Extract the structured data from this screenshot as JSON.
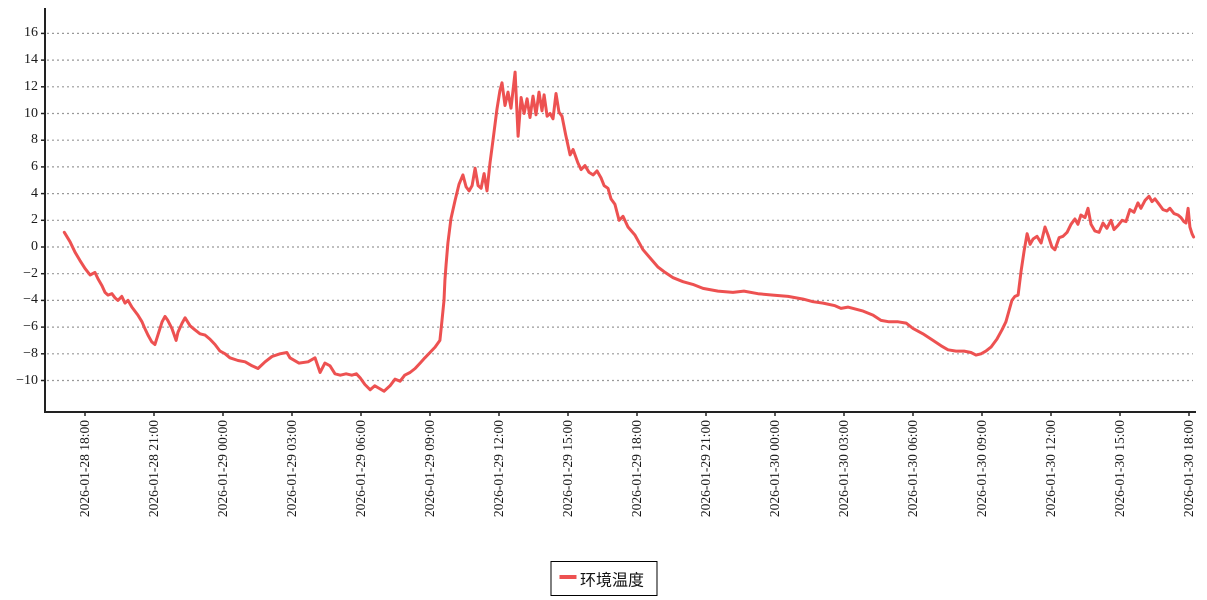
{
  "chart_data": {
    "type": "line",
    "title": "",
    "legend": {
      "items": [
        {
          "label": "环境温度",
          "color": "#ed5151"
        }
      ]
    },
    "x_axis": {
      "unit": "hours offset from 2026-01-28 18:00",
      "tick_hours": [
        0,
        3,
        6,
        9,
        12,
        15,
        18,
        21,
        24,
        27,
        30,
        33,
        36,
        39,
        42,
        45,
        48
      ],
      "tick_labels": [
        "2026-01-28 18:00",
        "2026-01-28 21:00",
        "2026-01-29 00:00",
        "2026-01-29 03:00",
        "2026-01-29 06:00",
        "2026-01-29 09:00",
        "2026-01-29 12:00",
        "2026-01-29 15:00",
        "2026-01-29 18:00",
        "2026-01-29 21:00",
        "2026-01-30 00:00",
        "2026-01-30 03:00",
        "2026-01-30 06:00",
        "2026-01-30 09:00",
        "2026-01-30 12:00",
        "2026-01-30 15:00",
        "2026-01-30 18:00"
      ],
      "range_hours": [
        -1.74,
        48.26
      ],
      "grid_vertical": false
    },
    "y_axis": {
      "ticks": [
        16,
        14,
        12,
        10,
        8,
        6,
        4,
        2,
        0,
        -2,
        -4,
        -6,
        -8,
        -10
      ],
      "tick_labels": [
        "16",
        "14",
        "12",
        "10",
        "8",
        "6",
        "4",
        "2",
        "0",
        "−2",
        "−4",
        "−6",
        "−8",
        "−10"
      ],
      "range": [
        -12.4,
        17.4
      ],
      "grid_horizontal_dashed": true
    },
    "series": [
      {
        "name": "环境温度",
        "color": "#ed5151",
        "points": [
          [
            -0.9,
            1.1
          ],
          [
            -0.65,
            0.4
          ],
          [
            -0.43,
            -0.4
          ],
          [
            -0.22,
            -1.0
          ],
          [
            0,
            -1.6
          ],
          [
            0.22,
            -2.1
          ],
          [
            0.43,
            -1.9
          ],
          [
            0.57,
            -2.4
          ],
          [
            0.74,
            -2.9
          ],
          [
            0.87,
            -3.4
          ],
          [
            1.0,
            -3.6
          ],
          [
            1.17,
            -3.5
          ],
          [
            1.3,
            -3.8
          ],
          [
            1.43,
            -4.0
          ],
          [
            1.6,
            -3.7
          ],
          [
            1.74,
            -4.2
          ],
          [
            1.87,
            -4.0
          ],
          [
            2.04,
            -4.5
          ],
          [
            2.17,
            -4.8
          ],
          [
            2.3,
            -5.1
          ],
          [
            2.48,
            -5.6
          ],
          [
            2.6,
            -6.1
          ],
          [
            2.74,
            -6.6
          ],
          [
            2.9,
            -7.1
          ],
          [
            3.04,
            -7.3
          ],
          [
            3.17,
            -6.6
          ],
          [
            3.35,
            -5.6
          ],
          [
            3.48,
            -5.2
          ],
          [
            3.6,
            -5.5
          ],
          [
            3.78,
            -6.1
          ],
          [
            3.96,
            -7.0
          ],
          [
            4.04,
            -6.4
          ],
          [
            4.22,
            -5.7
          ],
          [
            4.35,
            -5.3
          ],
          [
            4.57,
            -5.9
          ],
          [
            4.78,
            -6.2
          ],
          [
            5.0,
            -6.5
          ],
          [
            5.22,
            -6.6
          ],
          [
            5.43,
            -6.9
          ],
          [
            5.65,
            -7.3
          ],
          [
            5.87,
            -7.8
          ],
          [
            6.09,
            -8.0
          ],
          [
            6.3,
            -8.3
          ],
          [
            6.65,
            -8.5
          ],
          [
            6.96,
            -8.6
          ],
          [
            7.26,
            -8.9
          ],
          [
            7.52,
            -9.1
          ],
          [
            7.83,
            -8.6
          ],
          [
            8.13,
            -8.2
          ],
          [
            8.48,
            -8.0
          ],
          [
            8.78,
            -7.9
          ],
          [
            8.91,
            -8.3
          ],
          [
            9.3,
            -8.7
          ],
          [
            9.7,
            -8.6
          ],
          [
            10.0,
            -8.3
          ],
          [
            10.22,
            -9.4
          ],
          [
            10.43,
            -8.7
          ],
          [
            10.65,
            -8.9
          ],
          [
            10.87,
            -9.5
          ],
          [
            11.1,
            -9.6
          ],
          [
            11.35,
            -9.5
          ],
          [
            11.6,
            -9.6
          ],
          [
            11.8,
            -9.5
          ],
          [
            11.96,
            -9.8
          ],
          [
            12.17,
            -10.3
          ],
          [
            12.4,
            -10.7
          ],
          [
            12.6,
            -10.4
          ],
          [
            12.8,
            -10.6
          ],
          [
            13.0,
            -10.8
          ],
          [
            13.26,
            -10.4
          ],
          [
            13.48,
            -9.9
          ],
          [
            13.7,
            -10.05
          ],
          [
            13.9,
            -9.6
          ],
          [
            14.13,
            -9.4
          ],
          [
            14.35,
            -9.1
          ],
          [
            14.57,
            -8.7
          ],
          [
            14.78,
            -8.3
          ],
          [
            15.0,
            -7.9
          ],
          [
            15.22,
            -7.5
          ],
          [
            15.43,
            -7.0
          ],
          [
            15.52,
            -5.5
          ],
          [
            15.61,
            -4.0
          ],
          [
            15.65,
            -2.5
          ],
          [
            15.7,
            -1.3
          ],
          [
            15.78,
            0.3
          ],
          [
            15.91,
            2.1
          ],
          [
            16.09,
            3.5
          ],
          [
            16.26,
            4.7
          ],
          [
            16.43,
            5.4
          ],
          [
            16.57,
            4.5
          ],
          [
            16.7,
            4.2
          ],
          [
            16.83,
            4.6
          ],
          [
            16.96,
            5.9
          ],
          [
            17.09,
            4.6
          ],
          [
            17.22,
            4.4
          ],
          [
            17.35,
            5.5
          ],
          [
            17.48,
            4.2
          ],
          [
            17.61,
            6.3
          ],
          [
            17.74,
            8.0
          ],
          [
            17.91,
            10.3
          ],
          [
            18.04,
            11.7
          ],
          [
            18.13,
            12.3
          ],
          [
            18.26,
            10.6
          ],
          [
            18.39,
            11.6
          ],
          [
            18.52,
            10.4
          ],
          [
            18.7,
            13.1
          ],
          [
            18.83,
            8.3
          ],
          [
            18.96,
            11.2
          ],
          [
            19.09,
            10.0
          ],
          [
            19.22,
            11.1
          ],
          [
            19.35,
            9.7
          ],
          [
            19.48,
            11.3
          ],
          [
            19.61,
            9.9
          ],
          [
            19.74,
            11.6
          ],
          [
            19.87,
            10.2
          ],
          [
            19.96,
            11.4
          ],
          [
            20.09,
            9.8
          ],
          [
            20.22,
            10.0
          ],
          [
            20.35,
            9.6
          ],
          [
            20.48,
            11.5
          ],
          [
            20.61,
            10.1
          ],
          [
            20.74,
            9.8
          ],
          [
            20.9,
            8.4
          ],
          [
            21.09,
            6.9
          ],
          [
            21.22,
            7.3
          ],
          [
            21.43,
            6.3
          ],
          [
            21.57,
            5.8
          ],
          [
            21.74,
            6.1
          ],
          [
            21.91,
            5.6
          ],
          [
            22.09,
            5.4
          ],
          [
            22.26,
            5.7
          ],
          [
            22.43,
            5.2
          ],
          [
            22.57,
            4.6
          ],
          [
            22.74,
            4.4
          ],
          [
            22.87,
            3.6
          ],
          [
            23.04,
            3.2
          ],
          [
            23.22,
            2.0
          ],
          [
            23.39,
            2.3
          ],
          [
            23.61,
            1.5
          ],
          [
            23.91,
            0.9
          ],
          [
            24.26,
            -0.2
          ],
          [
            24.61,
            -0.9
          ],
          [
            24.91,
            -1.5
          ],
          [
            25.22,
            -1.9
          ],
          [
            25.57,
            -2.3
          ],
          [
            26.0,
            -2.6
          ],
          [
            26.43,
            -2.8
          ],
          [
            26.87,
            -3.1
          ],
          [
            27.52,
            -3.3
          ],
          [
            28.17,
            -3.4
          ],
          [
            28.65,
            -3.3
          ],
          [
            29.26,
            -3.5
          ],
          [
            29.91,
            -3.6
          ],
          [
            30.57,
            -3.7
          ],
          [
            31.22,
            -3.9
          ],
          [
            31.65,
            -4.1
          ],
          [
            32.09,
            -4.2
          ],
          [
            32.61,
            -4.4
          ],
          [
            32.87,
            -4.6
          ],
          [
            33.17,
            -4.5
          ],
          [
            33.83,
            -4.8
          ],
          [
            34.26,
            -5.1
          ],
          [
            34.61,
            -5.5
          ],
          [
            34.96,
            -5.6
          ],
          [
            35.35,
            -5.6
          ],
          [
            35.7,
            -5.7
          ],
          [
            36.0,
            -6.1
          ],
          [
            36.43,
            -6.5
          ],
          [
            36.87,
            -7.0
          ],
          [
            37.22,
            -7.4
          ],
          [
            37.52,
            -7.7
          ],
          [
            37.87,
            -7.8
          ],
          [
            38.22,
            -7.8
          ],
          [
            38.52,
            -7.9
          ],
          [
            38.74,
            -8.1
          ],
          [
            38.96,
            -8.0
          ],
          [
            39.17,
            -7.8
          ],
          [
            39.39,
            -7.5
          ],
          [
            39.65,
            -6.9
          ],
          [
            39.87,
            -6.2
          ],
          [
            40.04,
            -5.6
          ],
          [
            40.17,
            -4.8
          ],
          [
            40.3,
            -4.0
          ],
          [
            40.43,
            -3.7
          ],
          [
            40.57,
            -3.6
          ],
          [
            40.7,
            -1.8
          ],
          [
            40.83,
            -0.3
          ],
          [
            40.96,
            1.0
          ],
          [
            41.09,
            0.2
          ],
          [
            41.22,
            0.6
          ],
          [
            41.39,
            0.8
          ],
          [
            41.57,
            0.3
          ],
          [
            41.74,
            1.5
          ],
          [
            41.87,
            0.9
          ],
          [
            42.04,
            0.0
          ],
          [
            42.17,
            -0.2
          ],
          [
            42.35,
            0.7
          ],
          [
            42.52,
            0.8
          ],
          [
            42.7,
            1.1
          ],
          [
            42.87,
            1.7
          ],
          [
            43.04,
            2.1
          ],
          [
            43.17,
            1.7
          ],
          [
            43.3,
            2.4
          ],
          [
            43.48,
            2.2
          ],
          [
            43.61,
            2.9
          ],
          [
            43.74,
            1.7
          ],
          [
            43.91,
            1.2
          ],
          [
            44.09,
            1.1
          ],
          [
            44.26,
            1.8
          ],
          [
            44.43,
            1.4
          ],
          [
            44.61,
            2.0
          ],
          [
            44.74,
            1.3
          ],
          [
            44.91,
            1.6
          ],
          [
            45.09,
            2.0
          ],
          [
            45.26,
            1.9
          ],
          [
            45.43,
            2.8
          ],
          [
            45.61,
            2.6
          ],
          [
            45.78,
            3.3
          ],
          [
            45.91,
            2.9
          ],
          [
            46.09,
            3.5
          ],
          [
            46.26,
            3.8
          ],
          [
            46.39,
            3.4
          ],
          [
            46.52,
            3.6
          ],
          [
            46.7,
            3.2
          ],
          [
            46.87,
            2.8
          ],
          [
            47.04,
            2.7
          ],
          [
            47.17,
            2.9
          ],
          [
            47.35,
            2.5
          ],
          [
            47.52,
            2.4
          ],
          [
            47.65,
            2.2
          ],
          [
            47.78,
            1.9
          ],
          [
            47.87,
            1.8
          ],
          [
            47.96,
            2.9
          ],
          [
            48.04,
            1.5
          ],
          [
            48.13,
            1.0
          ],
          [
            48.2,
            0.75
          ]
        ]
      }
    ],
    "colors": {
      "line": "#ed5151",
      "axis": "#222222",
      "grid": "#999999",
      "tick_text": "#1a1a1a",
      "background": "#ffffff"
    }
  }
}
